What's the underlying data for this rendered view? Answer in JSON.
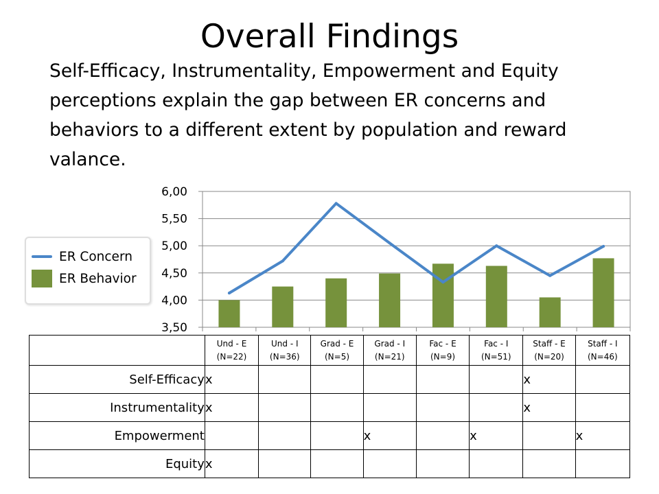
{
  "slide": {
    "title": "Overall Findings",
    "subtitle": "Self-Efficacy, Instrumentality, Empowerment and Equity perceptions explain the gap between ER concerns and behaviors to a different extent by population and reward valance."
  },
  "legend": {
    "line_label": "ER Concern",
    "bar_label": "ER Behavior"
  },
  "chart_data": {
    "type": "bar",
    "categories": [
      "Und - E (N=22)",
      "Und - I (N=36)",
      "Grad - E (N=5)",
      "Grad - I (N=21)",
      "Fac - E (N=9)",
      "Fac - I (N=51)",
      "Staff - E (N=20)",
      "Staff - I (N=46)"
    ],
    "series": [
      {
        "name": "ER Concern",
        "kind": "line",
        "color": "#4a86c8",
        "values": [
          4.13,
          4.72,
          5.78,
          5.05,
          4.33,
          5.0,
          4.45,
          4.99
        ]
      },
      {
        "name": "ER Behavior",
        "kind": "bar",
        "color": "#76923c",
        "values": [
          4.0,
          4.25,
          4.4,
          4.49,
          4.67,
          4.63,
          4.05,
          4.77
        ]
      }
    ],
    "yticks": [
      "6,00",
      "5,50",
      "5,00",
      "4,50",
      "4,00",
      "3,50"
    ],
    "ylim": [
      3.5,
      6.0
    ],
    "grid": true,
    "legend_position": "left"
  },
  "table": {
    "columns": [
      {
        "name": "Und - E",
        "n": "(N=22)"
      },
      {
        "name": "Und - I",
        "n": "(N=36)"
      },
      {
        "name": "Grad - E",
        "n": "(N=5)"
      },
      {
        "name": "Grad - I",
        "n": "(N=21)"
      },
      {
        "name": "Fac - E",
        "n": "(N=9)"
      },
      {
        "name": "Fac - I",
        "n": "(N=51)"
      },
      {
        "name": "Staff - E",
        "n": "(N=20)"
      },
      {
        "name": "Staff - I",
        "n": "(N=46)"
      }
    ],
    "rows": [
      {
        "label": "Self-Efficacy",
        "cells": [
          "x",
          "",
          "",
          "",
          "",
          "",
          "x",
          ""
        ]
      },
      {
        "label": "Instrumentality",
        "cells": [
          "x",
          "",
          "",
          "",
          "",
          "",
          "x",
          ""
        ]
      },
      {
        "label": "Empowerment",
        "cells": [
          "",
          "",
          "",
          "x",
          "",
          "x",
          "",
          "x"
        ]
      },
      {
        "label": "Equity",
        "cells": [
          "x",
          "",
          "",
          "",
          "",
          "",
          "",
          ""
        ]
      }
    ]
  }
}
